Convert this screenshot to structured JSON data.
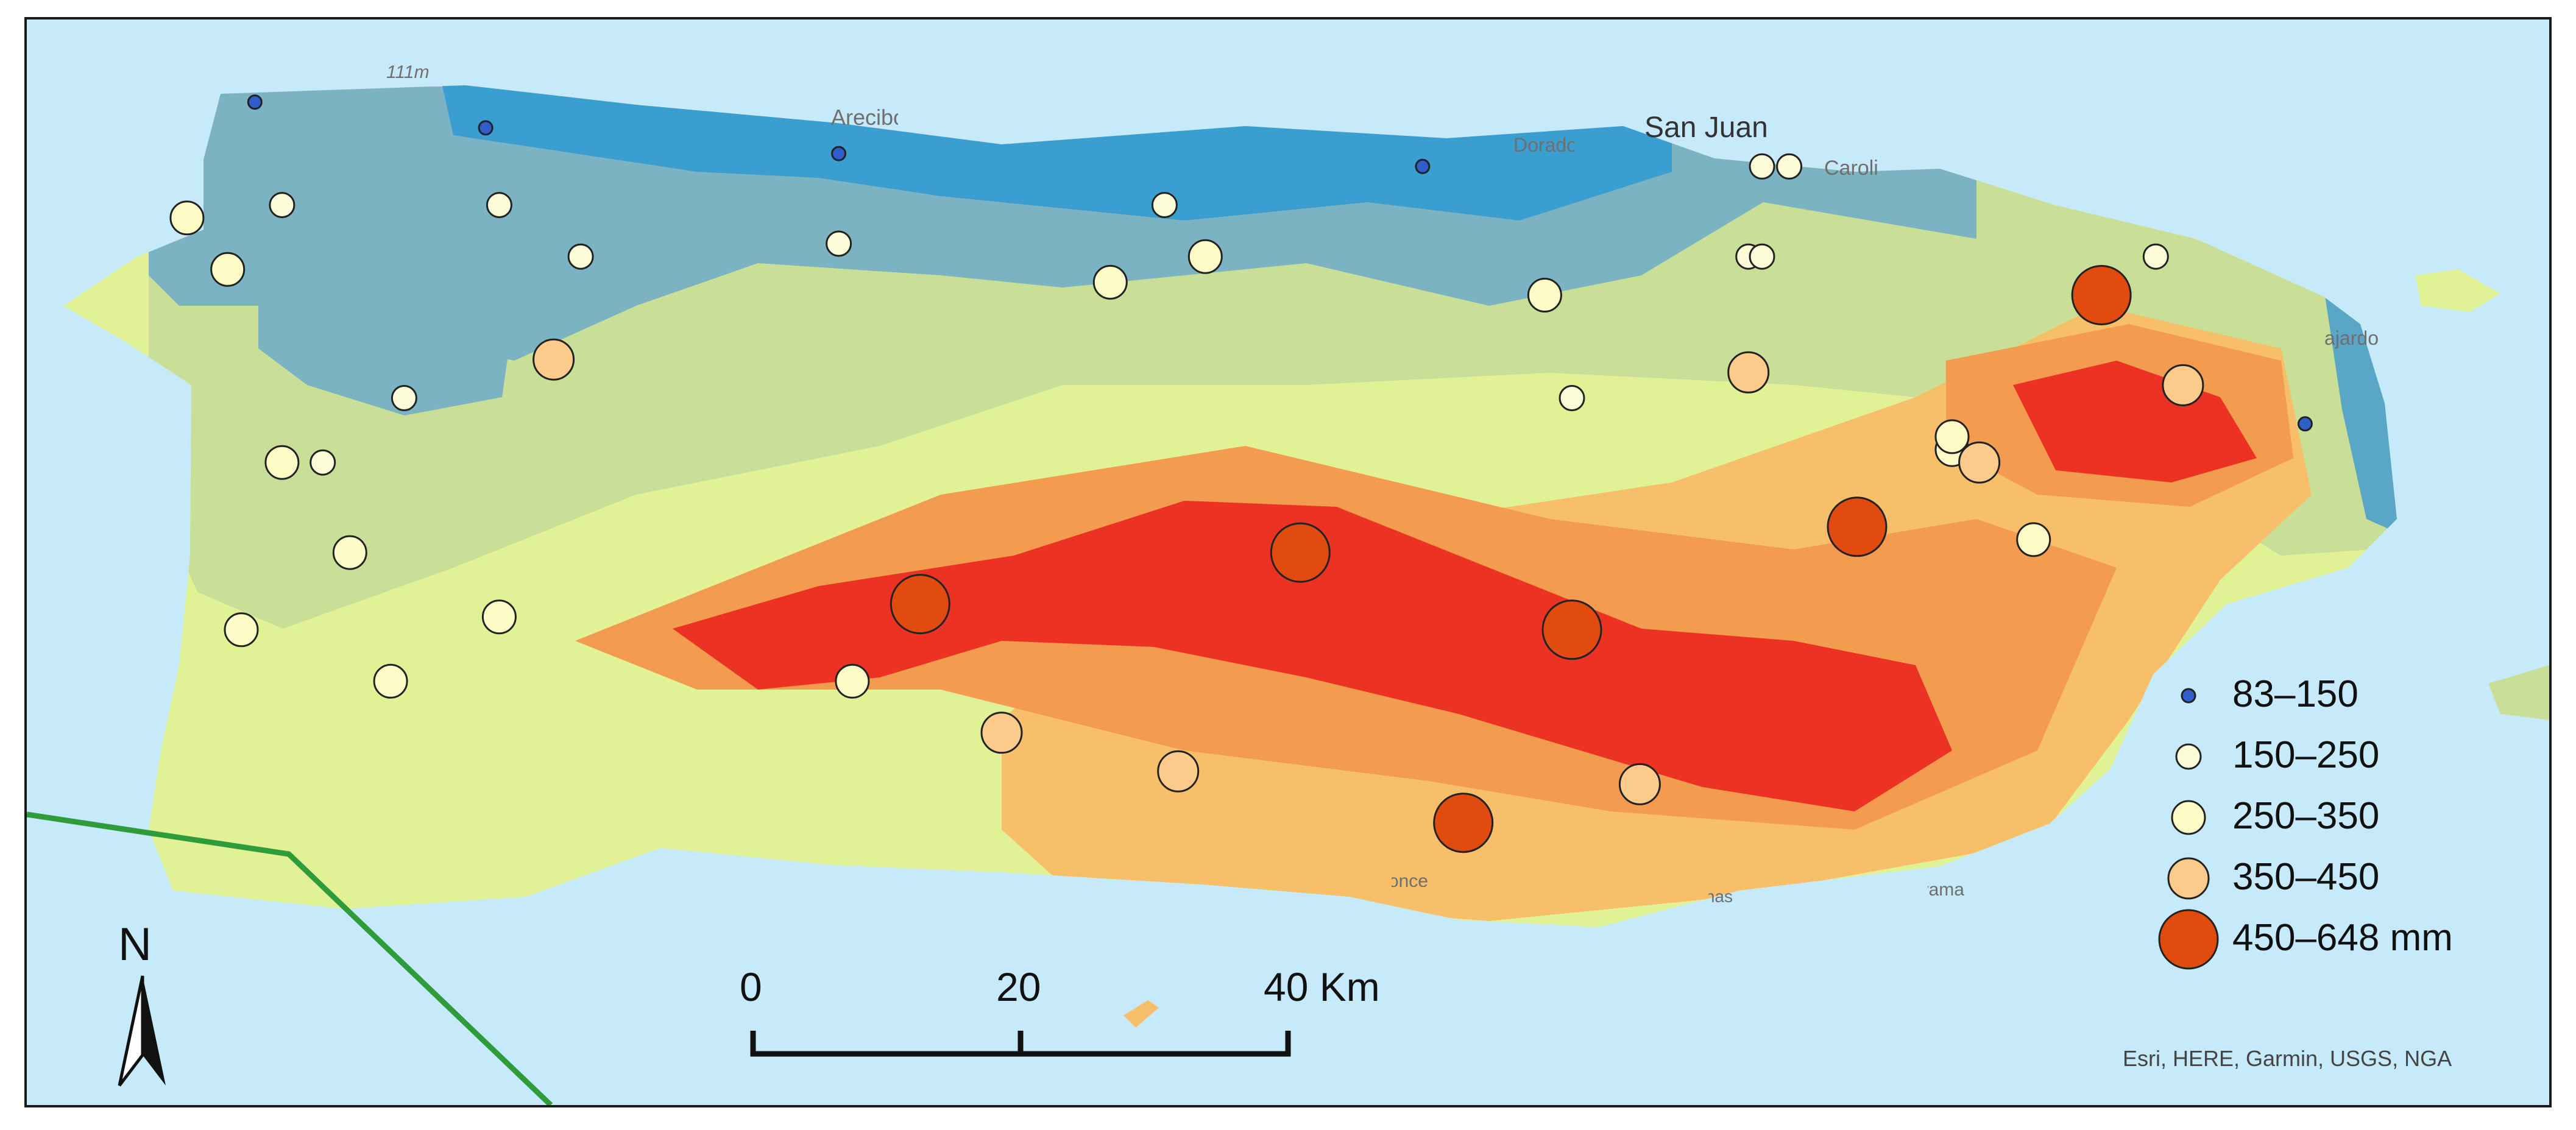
{
  "map": {
    "place_labels": [
      "111m",
      "Arecibo",
      "Dorado",
      "San Juan",
      "Carolina",
      "Fajardo",
      "Guayama",
      "Ponce",
      "Salinas"
    ],
    "north_label": "N",
    "scale": {
      "ticks": [
        "0",
        "20",
        "40 Km"
      ]
    },
    "attribution": "Esri, HERE, Garmin, USGS, NGA"
  },
  "legend": {
    "classes": [
      {
        "label": "83–150",
        "color": "#2f5ecb"
      },
      {
        "label": "150–250",
        "color": "#fbfbd8"
      },
      {
        "label": "250–350",
        "color": "#fdfcc6"
      },
      {
        "label": "350–450",
        "color": "#fcca8a"
      },
      {
        "label": "450–648 mm",
        "color": "#e14b10"
      }
    ]
  },
  "stations": [
    {
      "cls": 0,
      "lon": -67.15,
      "lat": 18.51
    },
    {
      "cls": 0,
      "lon": -66.98,
      "lat": 18.49
    },
    {
      "cls": 0,
      "lon": -66.72,
      "lat": 18.47
    },
    {
      "cls": 0,
      "lon": -66.29,
      "lat": 18.46
    },
    {
      "cls": 0,
      "lon": -65.64,
      "lat": 18.26
    },
    {
      "cls": 1,
      "lon": -67.13,
      "lat": 18.43
    },
    {
      "cls": 1,
      "lon": -66.97,
      "lat": 18.43
    },
    {
      "cls": 1,
      "lon": -66.91,
      "lat": 18.39
    },
    {
      "cls": 1,
      "lon": -67.04,
      "lat": 18.28
    },
    {
      "cls": 1,
      "lon": -67.1,
      "lat": 18.23
    },
    {
      "cls": 1,
      "lon": -66.72,
      "lat": 18.4
    },
    {
      "cls": 1,
      "lon": -66.48,
      "lat": 18.43
    },
    {
      "cls": 1,
      "lon": -66.18,
      "lat": 18.28
    },
    {
      "cls": 1,
      "lon": -66.05,
      "lat": 18.39
    },
    {
      "cls": 1,
      "lon": -66.04,
      "lat": 18.39
    },
    {
      "cls": 1,
      "lon": -66.04,
      "lat": 18.46
    },
    {
      "cls": 1,
      "lon": -66.02,
      "lat": 18.46
    },
    {
      "cls": 1,
      "lon": -65.75,
      "lat": 18.39
    },
    {
      "cls": 2,
      "lon": -67.2,
      "lat": 18.42
    },
    {
      "cls": 2,
      "lon": -67.17,
      "lat": 18.38
    },
    {
      "cls": 2,
      "lon": -67.13,
      "lat": 18.23
    },
    {
      "cls": 2,
      "lon": -67.08,
      "lat": 18.16
    },
    {
      "cls": 2,
      "lon": -67.16,
      "lat": 18.1
    },
    {
      "cls": 2,
      "lon": -67.05,
      "lat": 18.06
    },
    {
      "cls": 2,
      "lon": -66.97,
      "lat": 18.11
    },
    {
      "cls": 2,
      "lon": -66.71,
      "lat": 18.06
    },
    {
      "cls": 2,
      "lon": -66.52,
      "lat": 18.37
    },
    {
      "cls": 2,
      "lon": -66.45,
      "lat": 18.39
    },
    {
      "cls": 2,
      "lon": -66.2,
      "lat": 18.36
    },
    {
      "cls": 2,
      "lon": -65.9,
      "lat": 18.24
    },
    {
      "cls": 2,
      "lon": -65.84,
      "lat": 18.17
    },
    {
      "cls": 2,
      "lon": -65.9,
      "lat": 18.25
    },
    {
      "cls": 3,
      "lon": -66.93,
      "lat": 18.31
    },
    {
      "cls": 3,
      "lon": -66.6,
      "lat": 18.02
    },
    {
      "cls": 3,
      "lon": -66.47,
      "lat": 17.99
    },
    {
      "cls": 3,
      "lon": -66.13,
      "lat": 17.98
    },
    {
      "cls": 3,
      "lon": -66.05,
      "lat": 18.3
    },
    {
      "cls": 3,
      "lon": -65.88,
      "lat": 18.23
    },
    {
      "cls": 3,
      "lon": -65.73,
      "lat": 18.29
    },
    {
      "cls": 4,
      "lon": -66.66,
      "lat": 18.12
    },
    {
      "cls": 4,
      "lon": -66.38,
      "lat": 18.16
    },
    {
      "cls": 4,
      "lon": -66.18,
      "lat": 18.1
    },
    {
      "cls": 4,
      "lon": -66.26,
      "lat": 17.95
    },
    {
      "cls": 4,
      "lon": -65.97,
      "lat": 18.18
    },
    {
      "cls": 4,
      "lon": -65.79,
      "lat": 18.36
    }
  ]
}
